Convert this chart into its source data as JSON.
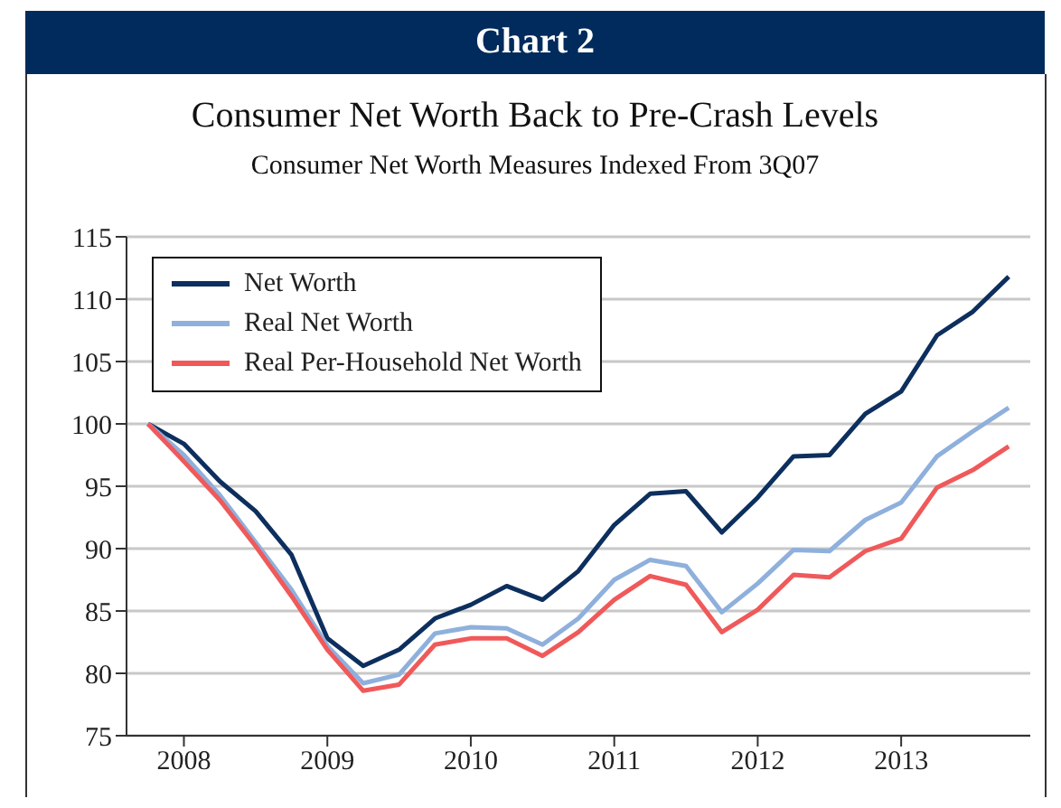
{
  "chart_data": {
    "type": "line",
    "title": "Consumer Net Worth Back to Pre-Crash Levels",
    "subtitle": "Consumer Net Worth Measures Indexed From 3Q07",
    "annotations": [
      "Chart 2"
    ],
    "x": [
      2007.75,
      2008,
      2008.25,
      2008.5,
      2008.75,
      2009,
      2009.25,
      2009.5,
      2009.75,
      2010,
      2010.25,
      2010.5,
      2010.75,
      2011,
      2011.25,
      2011.5,
      2011.75,
      2012,
      2012.25,
      2012.5,
      2012.75,
      2013,
      2013.25,
      2013.5,
      2013.75
    ],
    "series": [
      {
        "name": "Net Worth",
        "color": "#0d2f5e",
        "values": [
          100,
          98.4,
          95.4,
          93.0,
          89.5,
          82.8,
          80.6,
          81.9,
          84.4,
          85.5,
          87.0,
          85.9,
          88.2,
          91.9,
          94.4,
          94.6,
          91.3,
          94.1,
          97.4,
          97.5,
          100.8,
          102.6,
          107.1,
          109.0,
          111.8
        ]
      },
      {
        "name": "Real Net Worth",
        "color": "#8fb0dc",
        "values": [
          100,
          97.5,
          94.3,
          90.5,
          86.7,
          82.2,
          79.2,
          79.9,
          83.2,
          83.7,
          83.6,
          82.3,
          84.4,
          87.5,
          89.1,
          88.6,
          84.9,
          87.2,
          89.9,
          89.8,
          92.3,
          93.7,
          97.4,
          99.4,
          101.3
        ]
      },
      {
        "name": "Real Per-Household Net Worth",
        "color": "#f0595a",
        "values": [
          100,
          97.0,
          93.9,
          90.2,
          86.2,
          81.9,
          78.6,
          79.1,
          82.3,
          82.8,
          82.8,
          81.4,
          83.3,
          85.9,
          87.8,
          87.1,
          83.3,
          85.1,
          87.9,
          87.7,
          89.8,
          90.8,
          94.9,
          96.3,
          98.2
        ]
      }
    ],
    "xlim": [
      2007.6,
      2013.9
    ],
    "xticks": [
      {
        "value": 2008,
        "label": "2008"
      },
      {
        "value": 2009,
        "label": "2009"
      },
      {
        "value": 2010,
        "label": "2010"
      },
      {
        "value": 2011,
        "label": "2011"
      },
      {
        "value": 2012,
        "label": "2012"
      },
      {
        "value": 2013,
        "label": "2013"
      }
    ],
    "ylim": [
      75,
      115
    ],
    "yticks": [
      75,
      80,
      85,
      90,
      95,
      100,
      105,
      110,
      115
    ],
    "grid": "y",
    "legend": "top left",
    "marker": "none",
    "line_style": "solid"
  }
}
